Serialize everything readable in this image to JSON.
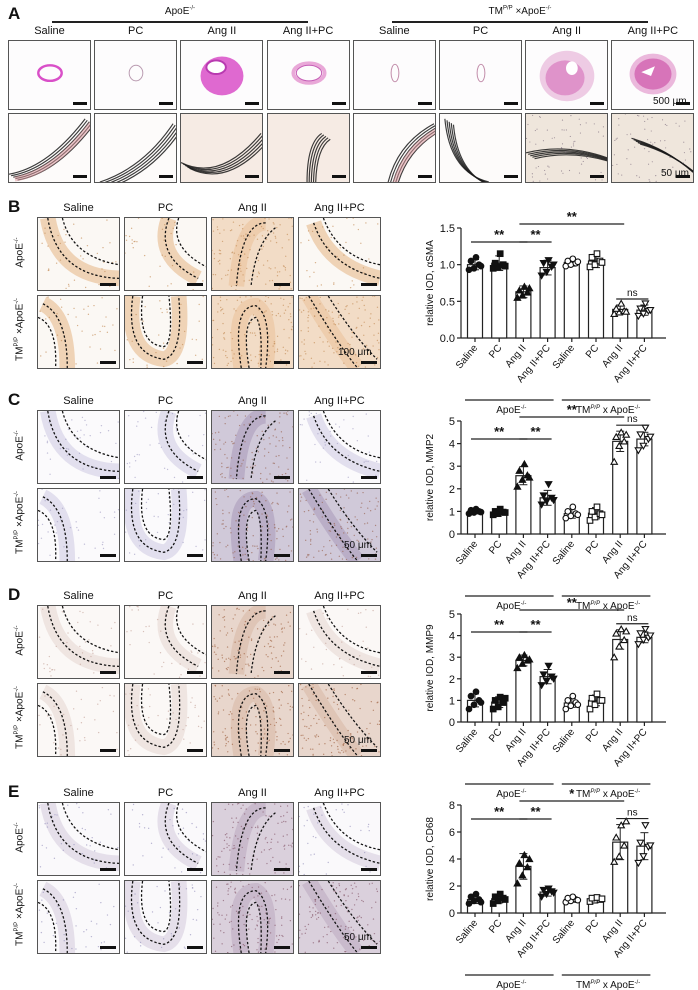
{
  "figure": {
    "groups": {
      "apoe": "ApoE",
      "apoe_sup": "-/-",
      "tm": "TM",
      "tm_sup": "P/P",
      "tm_apoe_suffix": " ×ApoE",
      "tm_apoe_chart_suffix": " x ApoE"
    },
    "conditions": [
      "Saline",
      "PC",
      "Ang II",
      "Ang II+PC"
    ],
    "panels": {
      "A": {
        "letter": "A",
        "scale_top": "500 μm",
        "scale_bottom": "50 μm"
      },
      "B": {
        "letter": "B",
        "scale": "100 μm"
      },
      "C": {
        "letter": "C",
        "scale": "50 μm"
      },
      "D": {
        "letter": "D",
        "scale": "50 μm"
      },
      "E": {
        "letter": "E",
        "scale": "50 μm"
      }
    },
    "colors": {
      "he_pink": "#d94fc8",
      "he_light": "#e9a8d8",
      "evg_black": "#1a1a1a",
      "ihc_brown": "#c98b5a",
      "ihc_tan": "#e6c4a0",
      "hematoxylin_blue": "#9aa0c8"
    }
  },
  "chart_data": [
    {
      "type": "bar",
      "panel": "B",
      "title": "",
      "ylabel": "relative IOD, αSMA",
      "xlabel": "",
      "ylim": [
        0,
        1.5
      ],
      "yticks": [
        "0.0",
        "0.5",
        "1.0",
        "1.5"
      ],
      "categories": [
        "Saline",
        "PC",
        "Ang II",
        "Ang II+PC",
        "Saline",
        "PC",
        "Ang II",
        "Ang II+PC"
      ],
      "group_labels": [
        "ApoE-/-",
        "TMP/P x ApoE-/-"
      ],
      "values": [
        1.0,
        1.02,
        0.63,
        0.96,
        1.03,
        1.05,
        0.39,
        0.38
      ],
      "errors": [
        0.07,
        0.1,
        0.08,
        0.1,
        0.05,
        0.09,
        0.06,
        0.07
      ],
      "points": [
        [
          0.93,
          0.95,
          1.0,
          1.05,
          1.1,
          0.98
        ],
        [
          0.95,
          0.97,
          1.0,
          1.02,
          1.15,
          0.98
        ],
        [
          0.55,
          0.58,
          0.62,
          0.65,
          0.7,
          0.68
        ],
        [
          0.85,
          0.9,
          0.97,
          1.02,
          1.06,
          1.0
        ],
        [
          0.98,
          1.0,
          1.02,
          1.05,
          1.08,
          1.04
        ],
        [
          0.97,
          1.0,
          1.05,
          1.1,
          1.15,
          1.03
        ],
        [
          0.33,
          0.35,
          0.37,
          0.4,
          0.47,
          0.36
        ],
        [
          0.3,
          0.33,
          0.37,
          0.4,
          0.47,
          0.38
        ]
      ],
      "markers": [
        "circle-filled",
        "square-filled",
        "triangle-filled",
        "triangle-down-filled",
        "circle-open",
        "square-open",
        "triangle-open",
        "triangle-down-open"
      ],
      "significance": [
        {
          "from": 0,
          "to": 2,
          "label": "**"
        },
        {
          "from": 2,
          "to": 3,
          "label": "**"
        },
        {
          "from": 2,
          "to": 6,
          "label": "**"
        },
        {
          "from": 6,
          "to": 7,
          "label": "ns"
        }
      ]
    },
    {
      "type": "bar",
      "panel": "C",
      "ylabel": "relative IOD, MMP2",
      "xlabel": "",
      "ylim": [
        0,
        5
      ],
      "yticks": [
        "0",
        "1",
        "2",
        "3",
        "4",
        "5"
      ],
      "categories": [
        "Saline",
        "PC",
        "Ang II",
        "Ang II+PC",
        "Saline",
        "PC",
        "Ang II",
        "Ang II+PC"
      ],
      "group_labels": [
        "ApoE-/-",
        "TMP/P x ApoE-/-"
      ],
      "values": [
        1.0,
        0.97,
        2.58,
        1.6,
        0.9,
        0.92,
        4.1,
        4.2
      ],
      "errors": [
        0.1,
        0.1,
        0.4,
        0.33,
        0.2,
        0.25,
        0.45,
        0.3
      ],
      "points": [
        [
          0.9,
          0.95,
          1.0,
          1.05,
          1.1,
          0.97
        ],
        [
          0.85,
          0.9,
          0.97,
          1.0,
          1.1,
          0.95
        ],
        [
          2.1,
          2.4,
          2.6,
          2.8,
          3.1,
          2.5
        ],
        [
          1.3,
          1.45,
          1.6,
          1.7,
          2.2,
          1.5
        ],
        [
          0.7,
          0.8,
          0.9,
          1.0,
          1.2,
          0.85
        ],
        [
          0.6,
          0.75,
          0.9,
          1.0,
          1.2,
          0.85
        ],
        [
          3.2,
          3.9,
          4.1,
          4.3,
          4.5,
          4.4
        ],
        [
          3.7,
          3.9,
          4.2,
          4.4,
          4.7,
          4.3
        ]
      ],
      "markers": [
        "circle-filled",
        "square-filled",
        "triangle-filled",
        "triangle-down-filled",
        "circle-open",
        "square-open",
        "triangle-open",
        "triangle-down-open"
      ],
      "significance": [
        {
          "from": 0,
          "to": 2,
          "label": "**"
        },
        {
          "from": 2,
          "to": 3,
          "label": "**"
        },
        {
          "from": 2,
          "to": 6,
          "label": "**"
        },
        {
          "from": 6,
          "to": 7,
          "label": "ns"
        }
      ]
    },
    {
      "type": "bar",
      "panel": "D",
      "ylabel": "relative IOD, MMP9",
      "xlabel": "",
      "ylim": [
        0,
        5
      ],
      "yticks": [
        "0",
        "1",
        "2",
        "3",
        "4",
        "5"
      ],
      "categories": [
        "Saline",
        "PC",
        "Ang II",
        "Ang II+PC",
        "Saline",
        "PC",
        "Ang II",
        "Ang II+PC"
      ],
      "group_labels": [
        "ApoE-/-",
        "TMP/P x ApoE-/-"
      ],
      "values": [
        1.0,
        0.92,
        2.85,
        2.1,
        0.88,
        1.0,
        3.82,
        3.92
      ],
      "errors": [
        0.3,
        0.25,
        0.25,
        0.33,
        0.2,
        0.25,
        0.45,
        0.25
      ],
      "points": [
        [
          0.6,
          0.8,
          1.0,
          1.2,
          1.4,
          0.9
        ],
        [
          0.6,
          0.7,
          0.9,
          1.0,
          1.15,
          1.1
        ],
        [
          2.5,
          2.7,
          2.85,
          3.0,
          3.1,
          2.9
        ],
        [
          1.7,
          1.9,
          2.1,
          2.2,
          2.6,
          2.0
        ],
        [
          0.6,
          0.75,
          0.9,
          1.0,
          1.2,
          0.8
        ],
        [
          0.6,
          0.8,
          1.0,
          1.1,
          1.3,
          1.0
        ],
        [
          3.0,
          3.5,
          3.8,
          4.1,
          4.3,
          4.2
        ],
        [
          3.6,
          3.8,
          3.9,
          4.1,
          4.3,
          4.0
        ]
      ],
      "markers": [
        "circle-filled",
        "square-filled",
        "triangle-filled",
        "triangle-down-filled",
        "circle-open",
        "square-open",
        "triangle-open",
        "triangle-down-open"
      ],
      "significance": [
        {
          "from": 0,
          "to": 2,
          "label": "**"
        },
        {
          "from": 2,
          "to": 3,
          "label": "**"
        },
        {
          "from": 2,
          "to": 6,
          "label": "**"
        },
        {
          "from": 6,
          "to": 7,
          "label": "ns"
        }
      ]
    },
    {
      "type": "bar",
      "panel": "E",
      "ylabel": "relative IOD, CD68",
      "xlabel": "",
      "ylim": [
        0,
        8
      ],
      "yticks": [
        "0",
        "2",
        "4",
        "6",
        "8"
      ],
      "categories": [
        "Saline",
        "PC",
        "Ang II",
        "Ang II+PC",
        "Saline",
        "PC",
        "Ang II",
        "Ang II+PC"
      ],
      "group_labels": [
        "ApoE-/-",
        "TMP/P x ApoE-/-"
      ],
      "values": [
        1.0,
        1.05,
        3.45,
        1.55,
        1.0,
        1.02,
        5.25,
        4.95
      ],
      "errors": [
        0.3,
        0.3,
        0.95,
        0.3,
        0.2,
        0.2,
        1.3,
        1.0
      ],
      "points": [
        [
          0.7,
          0.9,
          1.0,
          1.2,
          1.4,
          0.8
        ],
        [
          0.7,
          0.9,
          1.1,
          1.2,
          1.4,
          1.0
        ],
        [
          2.2,
          2.8,
          3.4,
          3.7,
          4.3,
          4.0
        ],
        [
          1.2,
          1.4,
          1.6,
          1.7,
          1.8,
          1.5
        ],
        [
          0.8,
          0.9,
          1.0,
          1.1,
          1.2,
          0.95
        ],
        [
          0.85,
          0.95,
          1.0,
          1.1,
          1.15,
          1.05
        ],
        [
          3.8,
          4.2,
          5.0,
          5.6,
          6.5,
          6.8
        ],
        [
          3.7,
          4.2,
          4.9,
          5.2,
          6.5,
          5.0
        ]
      ],
      "markers": [
        "circle-filled",
        "square-filled",
        "triangle-filled",
        "triangle-down-filled",
        "circle-open",
        "square-open",
        "triangle-open",
        "triangle-down-open"
      ],
      "significance": [
        {
          "from": 0,
          "to": 2,
          "label": "**"
        },
        {
          "from": 2,
          "to": 3,
          "label": "**"
        },
        {
          "from": 2,
          "to": 6,
          "label": "*"
        },
        {
          "from": 6,
          "to": 7,
          "label": "ns"
        }
      ]
    }
  ]
}
